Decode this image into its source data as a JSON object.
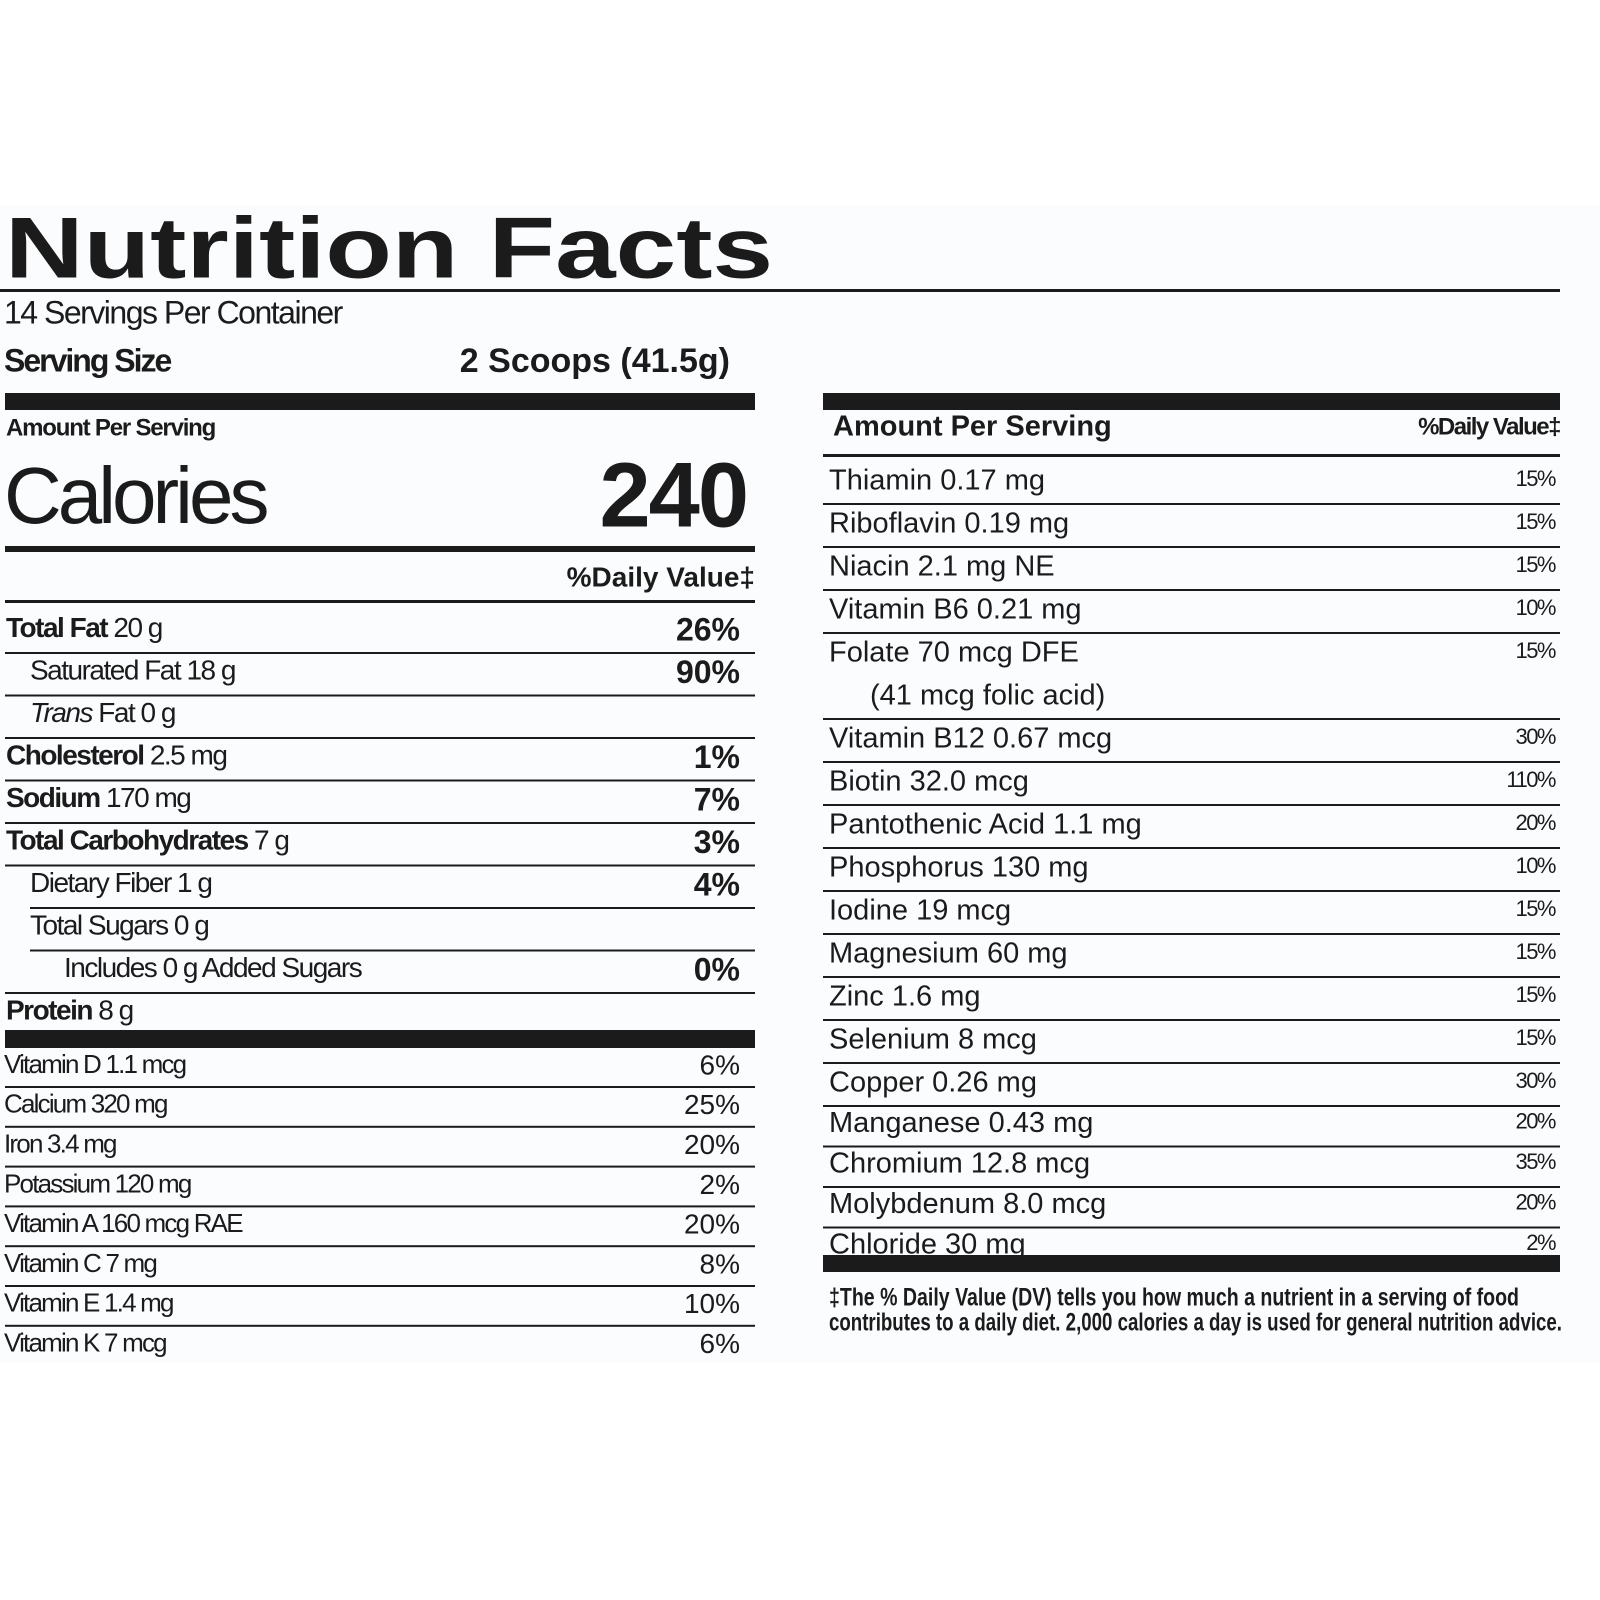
{
  "title": "Nutrition Facts",
  "servings_per_container": "14 Servings Per Container",
  "serving_size": {
    "label": "Serving Size",
    "value": "2 Scoops (41.5g)"
  },
  "amount_per_serving": "Amount Per Serving",
  "calories": {
    "label": "Calories",
    "value": 240
  },
  "daily_value_header": "%Daily Value‡",
  "nutrients": [
    {
      "name": "Total Fat",
      "amount": "20 g",
      "dv": "26%"
    },
    {
      "name": "Saturated Fat",
      "amount": "18 g",
      "dv": "90%"
    },
    {
      "name_italic": "Trans",
      "name": "Fat",
      "amount": "0 g"
    },
    {
      "name": "Cholesterol",
      "amount": "2.5 mg",
      "dv": "1%"
    },
    {
      "name": "Sodium",
      "amount": "170 mg",
      "dv": "7%"
    },
    {
      "name": "Total Carbohydrates",
      "amount": "7 g",
      "dv": "3%"
    },
    {
      "name": "Dietary Fiber",
      "amount": "1 g",
      "dv": "4%"
    },
    {
      "name": "Total Sugars",
      "amount": "0 g"
    },
    {
      "name": "Includes 0 g Added Sugars",
      "dv": "0%"
    },
    {
      "name": "Protein",
      "amount": "8 g"
    }
  ],
  "vitamins": [
    {
      "label": "Vitamin D 1.1 mcg",
      "dv": "6%"
    },
    {
      "label": "Calcium 320 mg",
      "dv": "25%"
    },
    {
      "label": "Iron 3.4 mg",
      "dv": "20%"
    },
    {
      "label": "Potassium 120 mg",
      "dv": "2%"
    },
    {
      "label": "Vitamin A 160 mcg RAE",
      "dv": "20%"
    },
    {
      "label": "Vitamin C 7 mg",
      "dv": "8%"
    },
    {
      "label": "Vitamin E 1.4 mg",
      "dv": "10%"
    },
    {
      "label": "Vitamin K 7 mcg",
      "dv": "6%"
    }
  ],
  "right": {
    "header": "Amount Per Serving",
    "dv_header": "%Daily Value‡",
    "rows": [
      {
        "label": "Thiamin 0.17 mg",
        "dv": "15%"
      },
      {
        "label": "Riboflavin 0.19 mg",
        "dv": "15%"
      },
      {
        "label": "Niacin 2.1 mg NE",
        "dv": "15%"
      },
      {
        "label": "Vitamin B6 0.21 mg",
        "dv": "10%"
      },
      {
        "label": "Folate 70 mcg DFE",
        "dv": "15%",
        "note": "(41 mcg folic acid)"
      },
      {
        "label": "Vitamin B12 0.67 mcg",
        "dv": "30%"
      },
      {
        "label": "Biotin 32.0 mcg",
        "dv": "110%"
      },
      {
        "label": "Pantothenic Acid 1.1 mg",
        "dv": "20%"
      },
      {
        "label": "Phosphorus 130 mg",
        "dv": "10%"
      },
      {
        "label": "Iodine 19 mcg",
        "dv": "15%"
      },
      {
        "label": "Magnesium 60 mg",
        "dv": "15%"
      },
      {
        "label": "Zinc 1.6 mg",
        "dv": "15%"
      },
      {
        "label": "Selenium 8 mcg",
        "dv": "15%"
      },
      {
        "label": "Copper 0.26 mg",
        "dv": "30%"
      },
      {
        "label": "Manganese 0.43 mg",
        "dv": "20%"
      },
      {
        "label": "Chromium 12.8 mcg",
        "dv": "35%"
      },
      {
        "label": "Molybdenum 8.0 mcg",
        "dv": "20%"
      },
      {
        "label": "Chloride 30 mg",
        "dv": "2%"
      }
    ],
    "footnote": [
      "‡The % Daily Value (DV) tells you how much a nutrient in a serving of food",
      "contributes to a daily diet. 2,000 calories a day is used for general nutrition advice."
    ]
  }
}
